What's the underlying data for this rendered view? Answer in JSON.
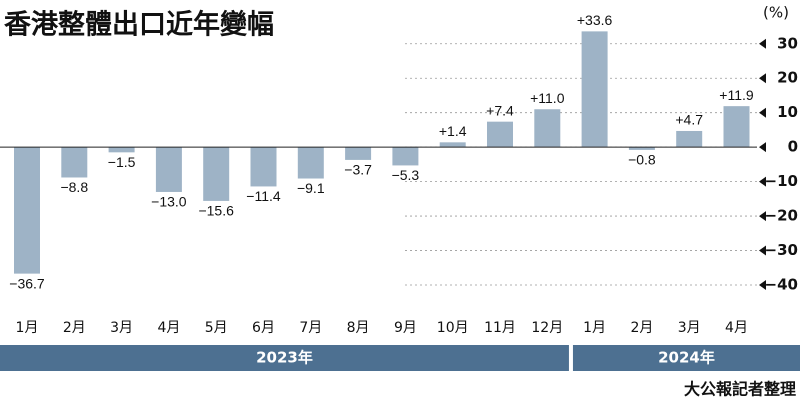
{
  "chart_data": {
    "type": "bar",
    "title": "香港整體出口近年變幅",
    "unit": "(%)",
    "groups": [
      {
        "label": "2023年",
        "categories": [
          "1月",
          "2月",
          "3月",
          "4月",
          "5月",
          "6月",
          "7月",
          "8月",
          "9月",
          "10月",
          "11月",
          "12月"
        ]
      },
      {
        "label": "2024年",
        "categories": [
          "1月",
          "2月",
          "3月",
          "4月"
        ]
      }
    ],
    "values": [
      -36.7,
      -8.8,
      -1.5,
      -13.0,
      -15.6,
      -11.4,
      -9.1,
      -3.7,
      -5.3,
      1.4,
      7.4,
      11.0,
      33.6,
      -0.8,
      4.7,
      11.9
    ],
    "value_labels": [
      "−36.7",
      "−8.8",
      "−1.5",
      "−13.0",
      "−15.6",
      "−11.4",
      "−9.1",
      "−3.7",
      "−5.3",
      "+1.4",
      "+7.4",
      "+11.0",
      "+33.6",
      "−0.8",
      "+4.7",
      "+11.9"
    ],
    "color": "#9eb3c6",
    "ylim": [
      -40,
      34
    ],
    "yticks": [
      30,
      20,
      10,
      0,
      {
        "value": -10,
        "label": "−10"
      },
      {
        "value": -20,
        "label": "−20"
      },
      {
        "value": -30,
        "label": "−30"
      },
      {
        "value": -40,
        "label": "−40"
      }
    ],
    "grid": true,
    "source": "大公報記者整理"
  }
}
